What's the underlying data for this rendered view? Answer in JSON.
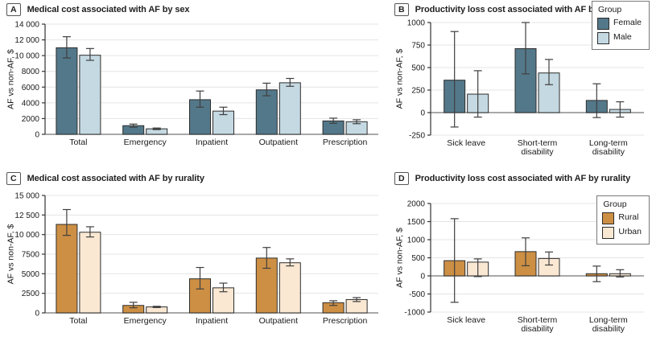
{
  "style_colors": {
    "gridline": "#e4e4e4",
    "zero_line": "#8c8c8c",
    "axis": "#333333",
    "error_bar": "#3f3f3f",
    "bar_border": "#2d2d2d",
    "text": "#1a1a1a"
  },
  "chart_data": "see charts[]",
  "charts": [
    {
      "letter": "A",
      "title": "Medical cost associated with AF by sex",
      "type": "bar",
      "ylabel": "AF vs non-AF, $",
      "ylim": [
        0,
        14000
      ],
      "yticks": [
        0,
        2000,
        4000,
        6000,
        8000,
        10000,
        12000,
        14000
      ],
      "ytick_labels": [
        "0",
        "2000",
        "4000",
        "6000",
        "8000",
        "10 000",
        "12 000",
        "14 000"
      ],
      "categories": [
        [
          "Total"
        ],
        [
          "Emergency"
        ],
        [
          "Inpatient"
        ],
        [
          "Outpatient"
        ],
        [
          "Prescription"
        ]
      ],
      "grid": true,
      "legend_position": "none",
      "series": [
        {
          "name": "Female",
          "color": "#53788a",
          "values": [
            11000,
            1100,
            4400,
            5650,
            1700
          ],
          "err_low": [
            9700,
            900,
            3450,
            4900,
            1400
          ],
          "err_high": [
            12400,
            1300,
            5500,
            6500,
            2050
          ]
        },
        {
          "name": "Male",
          "color": "#c5d9e2",
          "values": [
            10050,
            700,
            2950,
            6550,
            1600
          ],
          "err_low": [
            9400,
            600,
            2500,
            6100,
            1350
          ],
          "err_high": [
            10900,
            800,
            3450,
            7100,
            1850
          ]
        }
      ]
    },
    {
      "letter": "B",
      "title": "Productivity loss cost associated with AF by sex",
      "type": "bar",
      "ylabel": "AF vs non-AF, $",
      "ylim": [
        -250,
        1000
      ],
      "yticks": [
        -250,
        0,
        250,
        500,
        750,
        1000
      ],
      "ytick_labels": [
        "-250",
        "0",
        "250",
        "500",
        "750",
        "1000"
      ],
      "categories": [
        [
          "Sick leave"
        ],
        [
          "Short-term",
          "disability"
        ],
        [
          "Long-term",
          "disability"
        ]
      ],
      "grid": true,
      "legend_position": "top-right",
      "legend": {
        "title": "Group",
        "items": [
          {
            "label": "Female",
            "color": "#53788a"
          },
          {
            "label": "Male",
            "color": "#c5d9e2"
          }
        ]
      },
      "series": [
        {
          "name": "Female",
          "color": "#53788a",
          "values": [
            360,
            710,
            135
          ],
          "err_low": [
            -160,
            430,
            -55
          ],
          "err_high": [
            900,
            1000,
            320
          ]
        },
        {
          "name": "Male",
          "color": "#c5d9e2",
          "values": [
            205,
            440,
            35
          ],
          "err_low": [
            -50,
            310,
            -50
          ],
          "err_high": [
            465,
            590,
            120
          ]
        }
      ]
    },
    {
      "letter": "C",
      "title": "Medical cost associated with AF by rurality",
      "type": "bar",
      "ylabel": "AF vs non-AF, $",
      "ylim": [
        0,
        15000
      ],
      "yticks": [
        0,
        2500,
        5000,
        7500,
        10000,
        12500,
        15000
      ],
      "ytick_labels": [
        "0",
        "2500",
        "5000",
        "7500",
        "10 000",
        "12 500",
        "15 000"
      ],
      "categories": [
        [
          "Total"
        ],
        [
          "Emergency"
        ],
        [
          "Inpatient"
        ],
        [
          "Outpatient"
        ],
        [
          "Prescription"
        ]
      ],
      "grid": true,
      "legend_position": "none",
      "series": [
        {
          "name": "Rural",
          "color": "#cd8f44",
          "values": [
            11300,
            950,
            4350,
            7000,
            1300
          ],
          "err_low": [
            9900,
            650,
            3050,
            5700,
            950
          ],
          "err_high": [
            13200,
            1350,
            5800,
            8350,
            1550
          ]
        },
        {
          "name": "Urban",
          "color": "#fae8d3",
          "values": [
            10300,
            760,
            3200,
            6400,
            1700
          ],
          "err_low": [
            9700,
            680,
            2700,
            6000,
            1450
          ],
          "err_high": [
            11000,
            840,
            3800,
            6900,
            1950
          ]
        }
      ]
    },
    {
      "letter": "D",
      "title": "Productivity loss cost associated with AF by rurality",
      "type": "bar",
      "ylabel": "AF vs non-AF, $",
      "ylim": [
        -1000,
        2000
      ],
      "yticks": [
        -1000,
        -500,
        0,
        500,
        1000,
        1500,
        2000
      ],
      "ytick_labels": [
        "-1000",
        "-500",
        "0",
        "500",
        "1000",
        "1500",
        "2000"
      ],
      "categories": [
        [
          "Sick leave"
        ],
        [
          "Short-term",
          "disability"
        ],
        [
          "Long-term",
          "disability"
        ]
      ],
      "grid": true,
      "legend_position": "top-right",
      "legend": {
        "title": "Group",
        "items": [
          {
            "label": "Rural",
            "color": "#cd8f44"
          },
          {
            "label": "Urban",
            "color": "#fae8d3"
          }
        ]
      },
      "series": [
        {
          "name": "Rural",
          "color": "#cd8f44",
          "values": [
            420,
            670,
            60
          ],
          "err_low": [
            -730,
            280,
            -160
          ],
          "err_high": [
            1580,
            1050,
            270
          ]
        },
        {
          "name": "Urban",
          "color": "#fae8d3",
          "values": [
            380,
            480,
            60
          ],
          "err_low": [
            -20,
            300,
            -30
          ],
          "err_high": [
            470,
            660,
            170
          ]
        }
      ]
    }
  ]
}
